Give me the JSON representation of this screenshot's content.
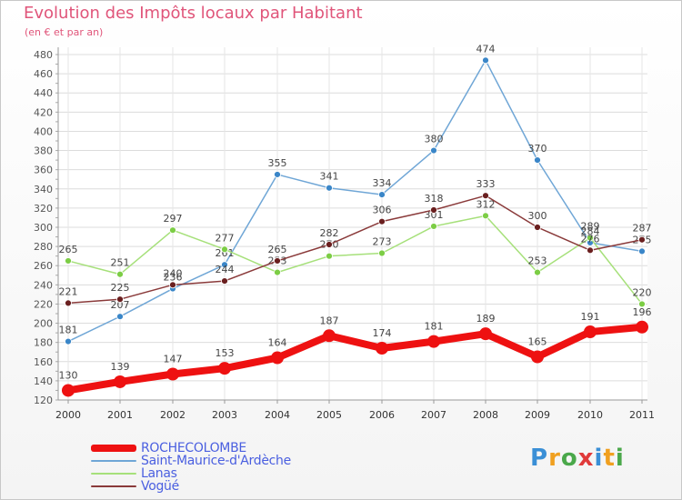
{
  "header": {
    "title": "Evolution des Impôts locaux par Habitant",
    "subtitle": "(en € et par an)"
  },
  "chart_data": {
    "type": "line",
    "title": "Evolution des Impôts locaux par Habitant",
    "subtitle": "(en € et par an)",
    "xlabel": "",
    "ylabel": "",
    "x": [
      "2000",
      "2001",
      "2002",
      "2003",
      "2004",
      "2005",
      "2006",
      "2007",
      "2008",
      "2009",
      "2010",
      "2011"
    ],
    "ylim": [
      120,
      480
    ],
    "yticks": [
      "120",
      "140",
      "160",
      "180",
      "200",
      "220",
      "240",
      "260",
      "280",
      "300",
      "320",
      "340",
      "360",
      "380",
      "400",
      "420",
      "440",
      "460",
      "480"
    ],
    "grid": true,
    "legend_position": "bottom-left",
    "series": [
      {
        "name": "Saint-Maurice-d'Ardèche",
        "color": "#6fa6d6",
        "marker": "#3a86c8",
        "values": [
          181,
          207,
          236,
          261,
          355,
          341,
          334,
          380,
          474,
          370,
          284,
          275
        ]
      },
      {
        "name": "Lanas",
        "color": "#a6e07a",
        "marker": "#7ccd45",
        "values": [
          265,
          251,
          297,
          277,
          253,
          270,
          273,
          301,
          312,
          253,
          289,
          220
        ]
      },
      {
        "name": "Vogüé",
        "color": "#8a3a3a",
        "marker": "#6a1f1f",
        "values": [
          221,
          225,
          240,
          244,
          265,
          282,
          306,
          318,
          333,
          300,
          276,
          287
        ]
      },
      {
        "name": "ROCHECOLOMBE",
        "color": "#ee1111",
        "marker": "#ee1111",
        "values": [
          130,
          139,
          147,
          153,
          164,
          187,
          174,
          181,
          189,
          165,
          191,
          196
        ]
      }
    ],
    "legend": [
      {
        "name": "ROCHECOLOMBE",
        "color": "#ee1111"
      },
      {
        "name": "Saint-Maurice-d'Ardèche",
        "color": "#6fa6d6"
      },
      {
        "name": "Lanas",
        "color": "#a6e07a"
      },
      {
        "name": "Vogüé",
        "color": "#8a3a3a"
      }
    ]
  },
  "logo": {
    "letters": [
      "P",
      "r",
      "o",
      "x",
      "i",
      "t",
      "i"
    ],
    "colors": [
      "#3a8fd6",
      "#f0a020",
      "#4aa84a",
      "#e03a3a",
      "#3a8fd6",
      "#f0a020",
      "#4aa84a"
    ]
  }
}
